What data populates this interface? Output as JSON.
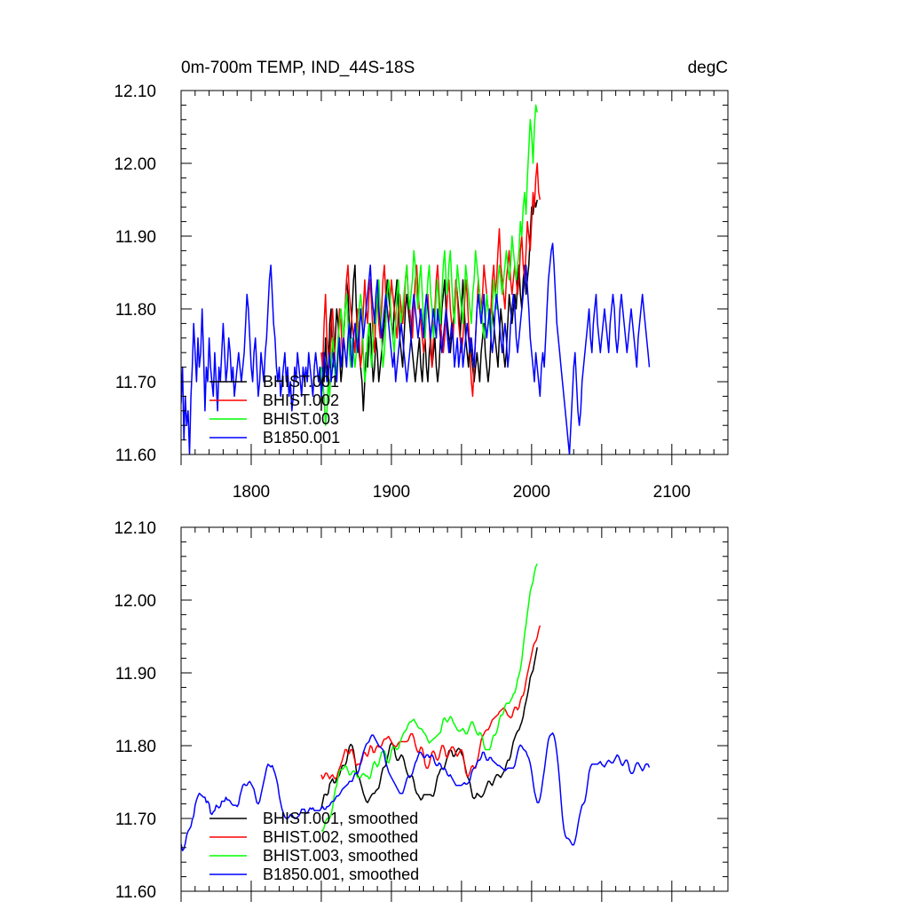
{
  "chart_data": [
    {
      "type": "line",
      "title": "0m-700m TEMP, IND_44S-18S",
      "units": "degC",
      "xlim": [
        1750,
        2140
      ],
      "ylim": [
        11.6,
        12.1
      ],
      "yticks": [
        "11.60",
        "11.70",
        "11.80",
        "11.90",
        "12.00",
        "12.10"
      ],
      "xticks": [
        "1800",
        "1900",
        "2000",
        "2100"
      ],
      "legend_position": "bottom-left",
      "series": [
        {
          "name": "BHIST.001",
          "color": "#000000",
          "x0": 1850,
          "values": [
            11.66,
            11.74,
            11.7,
            11.76,
            11.72,
            11.7,
            11.78,
            11.8,
            11.74,
            11.72,
            11.76,
            11.8,
            11.78,
            11.74,
            11.7,
            11.72,
            11.76,
            11.8,
            11.84,
            11.82,
            11.78,
            11.76,
            11.8,
            11.84,
            11.86,
            11.8,
            11.76,
            11.74,
            11.72,
            11.7,
            11.66,
            11.7,
            11.74,
            11.72,
            11.76,
            11.78,
            11.74,
            11.7,
            11.72,
            11.76,
            11.74,
            11.7,
            11.72,
            11.74,
            11.76,
            11.78,
            11.8,
            11.84,
            11.82,
            11.8,
            11.78,
            11.76,
            11.8,
            11.82,
            11.84,
            11.8,
            11.76,
            11.74,
            11.72,
            11.76,
            11.8,
            11.82,
            11.8,
            11.78,
            11.76,
            11.74,
            11.72,
            11.7,
            11.72,
            11.74,
            11.76,
            11.72,
            11.7,
            11.74,
            11.76,
            11.72,
            11.7,
            11.74,
            11.76,
            11.72,
            11.74,
            11.76,
            11.72,
            11.7,
            11.72,
            11.76,
            11.8,
            11.82,
            11.84,
            11.8,
            11.78,
            11.76,
            11.74,
            11.76,
            11.78,
            11.8,
            11.84,
            11.82,
            11.8,
            11.76,
            11.8,
            11.84,
            11.8,
            11.76,
            11.74,
            11.72,
            11.76,
            11.74,
            11.72,
            11.7,
            11.72,
            11.74,
            11.72,
            11.7,
            11.74,
            11.76,
            11.78,
            11.74,
            11.72,
            11.7,
            11.72,
            11.76,
            11.8,
            11.78,
            11.76,
            11.74,
            11.72,
            11.76,
            11.8,
            11.78,
            11.74,
            11.72,
            11.74,
            11.78,
            11.82,
            11.8,
            11.78,
            11.8,
            11.82,
            11.8,
            11.84,
            11.86,
            11.82,
            11.8,
            11.84,
            11.86,
            11.82,
            11.84,
            11.86,
            11.9,
            11.94,
            11.93,
            11.95,
            11.94,
            11.95
          ]
        },
        {
          "name": "BHIST.002",
          "color": "#ff0000",
          "x0": 1850,
          "values": [
            11.74,
            11.72,
            11.78,
            11.82,
            11.76,
            11.74,
            11.72,
            11.78,
            11.8,
            11.76,
            11.72,
            11.7,
            11.76,
            11.8,
            11.78,
            11.74,
            11.76,
            11.8,
            11.84,
            11.86,
            11.82,
            11.8,
            11.78,
            11.76,
            11.74,
            11.78,
            11.8,
            11.76,
            11.72,
            11.74,
            11.8,
            11.84,
            11.8,
            11.78,
            11.82,
            11.84,
            11.8,
            11.76,
            11.74,
            11.8,
            11.82,
            11.78,
            11.76,
            11.8,
            11.84,
            11.86,
            11.82,
            11.8,
            11.78,
            11.8,
            11.84,
            11.82,
            11.8,
            11.78,
            11.76,
            11.8,
            11.82,
            11.8,
            11.78,
            11.8,
            11.84,
            11.86,
            11.82,
            11.8,
            11.78,
            11.76,
            11.8,
            11.84,
            11.86,
            11.82,
            11.8,
            11.78,
            11.76,
            11.74,
            11.76,
            11.8,
            11.82,
            11.78,
            11.74,
            11.72,
            11.76,
            11.8,
            11.84,
            11.86,
            11.82,
            11.78,
            11.76,
            11.74,
            11.76,
            11.78,
            11.82,
            11.84,
            11.8,
            11.78,
            11.76,
            11.8,
            11.84,
            11.82,
            11.78,
            11.76,
            11.74,
            11.76,
            11.8,
            11.84,
            11.82,
            11.78,
            11.74,
            11.7,
            11.68,
            11.72,
            11.76,
            11.8,
            11.84,
            11.82,
            11.8,
            11.82,
            11.86,
            11.84,
            11.82,
            11.8,
            11.78,
            11.8,
            11.84,
            11.86,
            11.82,
            11.84,
            11.88,
            11.91,
            11.86,
            11.84,
            11.82,
            11.8,
            11.84,
            11.86,
            11.88,
            11.84,
            11.82,
            11.84,
            11.86,
            11.84,
            11.82,
            11.84,
            11.88,
            11.9,
            11.86,
            11.84,
            11.88,
            11.92,
            11.9,
            11.88,
            11.92,
            11.96,
            11.94,
            11.98,
            12.0,
            11.96,
            11.95
          ]
        },
        {
          "name": "BHIST.003",
          "color": "#00ff00",
          "x0": 1850,
          "values": [
            11.72,
            11.7,
            11.68,
            11.64,
            11.66,
            11.7,
            11.68,
            11.72,
            11.76,
            11.74,
            11.7,
            11.72,
            11.76,
            11.78,
            11.8,
            11.78,
            11.76,
            11.8,
            11.82,
            11.78,
            11.74,
            11.72,
            11.76,
            11.74,
            11.72,
            11.74,
            11.78,
            11.8,
            11.82,
            11.8,
            11.74,
            11.7,
            11.72,
            11.76,
            11.78,
            11.74,
            11.72,
            11.76,
            11.8,
            11.78,
            11.82,
            11.84,
            11.8,
            11.76,
            11.72,
            11.74,
            11.78,
            11.82,
            11.84,
            11.82,
            11.78,
            11.76,
            11.74,
            11.78,
            11.82,
            11.84,
            11.8,
            11.78,
            11.8,
            11.82,
            11.84,
            11.86,
            11.82,
            11.8,
            11.82,
            11.84,
            11.88,
            11.86,
            11.82,
            11.8,
            11.84,
            11.86,
            11.82,
            11.78,
            11.76,
            11.8,
            11.84,
            11.86,
            11.82,
            11.8,
            11.76,
            11.78,
            11.82,
            11.84,
            11.8,
            11.78,
            11.82,
            11.86,
            11.88,
            11.84,
            11.82,
            11.86,
            11.88,
            11.84,
            11.8,
            11.78,
            11.82,
            11.86,
            11.84,
            11.82,
            11.8,
            11.78,
            11.82,
            11.86,
            11.84,
            11.82,
            11.8,
            11.78,
            11.82,
            11.84,
            11.88,
            11.86,
            11.84,
            11.82,
            11.8,
            11.78,
            11.76,
            11.78,
            11.82,
            11.8,
            11.78,
            11.76,
            11.8,
            11.84,
            11.82,
            11.8,
            11.84,
            11.86,
            11.84,
            11.82,
            11.84,
            11.86,
            11.88,
            11.86,
            11.84,
            11.86,
            11.9,
            11.88,
            11.86,
            11.84,
            11.86,
            11.88,
            11.92,
            11.9,
            11.94,
            11.96,
            11.93,
            11.98,
            12.02,
            12.06,
            12.04,
            12.0,
            12.05,
            12.08,
            12.07
          ]
        },
        {
          "name": "B1850.001",
          "color": "#0000ff",
          "x0": 1750,
          "values": [
            11.67,
            11.72,
            11.62,
            11.68,
            11.64,
            11.66,
            11.6,
            11.68,
            11.72,
            11.78,
            11.74,
            11.7,
            11.76,
            11.72,
            11.74,
            11.8,
            11.74,
            11.66,
            11.72,
            11.7,
            11.76,
            11.72,
            11.7,
            11.68,
            11.74,
            11.7,
            11.66,
            11.72,
            11.7,
            11.74,
            11.78,
            11.74,
            11.7,
            11.72,
            11.76,
            11.74,
            11.7,
            11.72,
            11.68,
            11.7,
            11.72,
            11.74,
            11.72,
            11.7,
            11.72,
            11.74,
            11.78,
            11.82,
            11.8,
            11.76,
            11.72,
            11.7,
            11.74,
            11.76,
            11.72,
            11.68,
            11.7,
            11.74,
            11.72,
            11.7,
            11.74,
            11.76,
            11.8,
            11.84,
            11.86,
            11.82,
            11.78,
            11.76,
            11.72,
            11.7,
            11.72,
            11.68,
            11.7,
            11.72,
            11.74,
            11.7,
            11.72,
            11.68,
            11.7,
            11.66,
            11.68,
            11.72,
            11.7,
            11.74,
            11.72,
            11.7,
            11.68,
            11.72,
            11.7,
            11.72,
            11.7,
            11.74,
            11.72,
            11.7,
            11.68,
            11.72,
            11.74,
            11.72,
            11.7,
            11.72,
            11.68,
            11.7,
            11.74,
            11.72,
            11.7,
            11.72,
            11.74,
            11.7,
            11.72,
            11.74,
            11.72,
            11.7,
            11.74,
            11.76,
            11.72,
            11.74,
            11.76,
            11.74,
            11.72,
            11.76,
            11.78,
            11.74,
            11.72,
            11.76,
            11.78,
            11.76,
            11.74,
            11.76,
            11.8,
            11.78,
            11.76,
            11.78,
            11.8,
            11.82,
            11.84,
            11.86,
            11.82,
            11.8,
            11.78,
            11.82,
            11.84,
            11.8,
            11.78,
            11.76,
            11.78,
            11.8,
            11.82,
            11.8,
            11.78,
            11.76,
            11.74,
            11.72,
            11.74,
            11.7,
            11.72,
            11.74,
            11.76,
            11.78,
            11.76,
            11.74,
            11.72,
            11.7,
            11.72,
            11.74,
            11.76,
            11.8,
            11.82,
            11.8,
            11.78,
            11.76,
            11.78,
            11.8,
            11.78,
            11.76,
            11.8,
            11.82,
            11.8,
            11.78,
            11.76,
            11.78,
            11.8,
            11.78,
            11.76,
            11.8,
            11.78,
            11.76,
            11.74,
            11.76,
            11.78,
            11.8,
            11.76,
            11.74,
            11.76,
            11.78,
            11.76,
            11.72,
            11.74,
            11.76,
            11.72,
            11.74,
            11.76,
            11.72,
            11.74,
            11.76,
            11.78,
            11.76,
            11.74,
            11.76,
            11.74,
            11.72,
            11.76,
            11.8,
            11.82,
            11.8,
            11.78,
            11.8,
            11.82,
            11.78,
            11.76,
            11.78,
            11.8,
            11.76,
            11.74,
            11.76,
            11.8,
            11.82,
            11.8,
            11.78,
            11.76,
            11.74,
            11.76,
            11.78,
            11.76,
            11.72,
            11.74,
            11.78,
            11.8,
            11.82,
            11.8,
            11.76,
            11.74,
            11.76,
            11.78,
            11.8,
            11.82,
            11.84,
            11.86,
            11.83,
            11.8,
            11.76,
            11.74,
            11.72,
            11.7,
            11.74,
            11.72,
            11.7,
            11.68,
            11.72,
            11.74,
            11.72,
            11.76,
            11.8,
            11.84,
            11.86,
            11.88,
            11.89,
            11.86,
            11.82,
            11.78,
            11.76,
            11.74,
            11.72,
            11.7,
            11.68,
            11.66,
            11.64,
            11.62,
            11.6,
            11.64,
            11.68,
            11.72,
            11.74,
            11.7,
            11.66,
            11.64,
            11.66,
            11.7,
            11.72,
            11.74,
            11.76,
            11.78,
            11.8,
            11.76,
            11.74,
            11.78,
            11.8,
            11.82,
            11.78,
            11.76,
            11.74,
            11.76,
            11.78,
            11.8,
            11.78,
            11.76,
            11.74,
            11.78,
            11.8,
            11.82,
            11.8,
            11.76,
            11.74,
            11.76,
            11.8,
            11.82,
            11.8,
            11.78,
            11.76,
            11.74,
            11.76,
            11.78,
            11.8,
            11.78,
            11.76,
            11.74,
            11.72,
            11.76,
            11.78,
            11.8,
            11.82,
            11.8,
            11.78,
            11.76,
            11.74,
            11.72
          ]
        }
      ]
    },
    {
      "type": "line",
      "title": "",
      "xlim": [
        1750,
        2140
      ],
      "ylim": [
        11.6,
        12.1
      ],
      "yticks": [
        "11.60",
        "11.70",
        "11.80",
        "11.90",
        "12.00",
        "12.10"
      ],
      "xticks": [],
      "smoothing_window": 11,
      "legend_position": "bottom-left",
      "series": [
        {
          "name": "BHIST.001, smoothed",
          "color": "#000000",
          "source": "BHIST.001"
        },
        {
          "name": "BHIST.002, smoothed",
          "color": "#ff0000",
          "source": "BHIST.002"
        },
        {
          "name": "BHIST.003, smoothed",
          "color": "#00ff00",
          "source": "BHIST.003"
        },
        {
          "name": "B1850.001, smoothed",
          "color": "#0000ff",
          "source": "B1850.001"
        }
      ]
    }
  ]
}
